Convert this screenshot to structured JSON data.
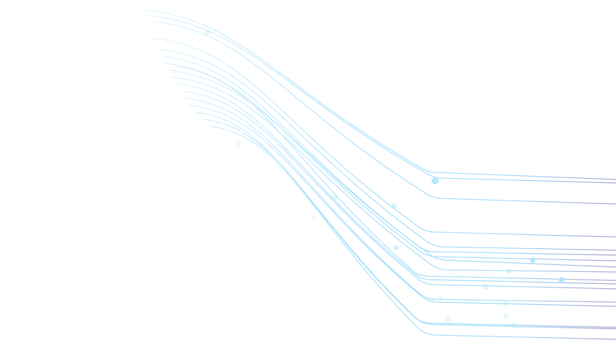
{
  "colors": {
    "background": "#ffffff",
    "line_start": "#e6f7ff",
    "line_mid": "#9fdcfb",
    "line_end": "#a9a4cc",
    "dot": "#aee4fb"
  }
}
